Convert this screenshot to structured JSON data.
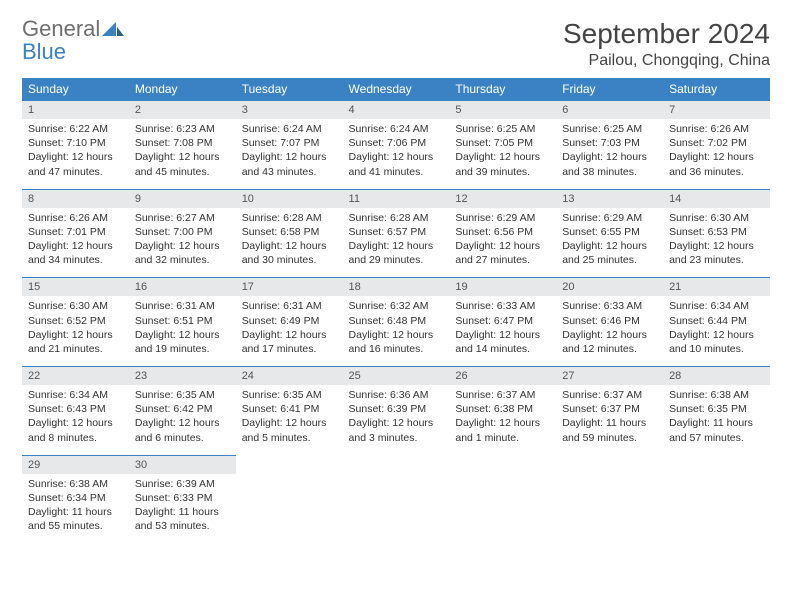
{
  "logo": {
    "general": "General",
    "blue": "Blue"
  },
  "title": "September 2024",
  "location": "Pailou, Chongqing, China",
  "colors": {
    "accent": "#3b82c4",
    "daynum_bg": "#e7e8e9",
    "text": "#333333",
    "logo_gray": "#6f6f6f"
  },
  "days_of_week": [
    "Sunday",
    "Monday",
    "Tuesday",
    "Wednesday",
    "Thursday",
    "Friday",
    "Saturday"
  ],
  "weeks": [
    [
      {
        "n": "1",
        "sr": "Sunrise: 6:22 AM",
        "ss": "Sunset: 7:10 PM",
        "d1": "Daylight: 12 hours",
        "d2": "and 47 minutes."
      },
      {
        "n": "2",
        "sr": "Sunrise: 6:23 AM",
        "ss": "Sunset: 7:08 PM",
        "d1": "Daylight: 12 hours",
        "d2": "and 45 minutes."
      },
      {
        "n": "3",
        "sr": "Sunrise: 6:24 AM",
        "ss": "Sunset: 7:07 PM",
        "d1": "Daylight: 12 hours",
        "d2": "and 43 minutes."
      },
      {
        "n": "4",
        "sr": "Sunrise: 6:24 AM",
        "ss": "Sunset: 7:06 PM",
        "d1": "Daylight: 12 hours",
        "d2": "and 41 minutes."
      },
      {
        "n": "5",
        "sr": "Sunrise: 6:25 AM",
        "ss": "Sunset: 7:05 PM",
        "d1": "Daylight: 12 hours",
        "d2": "and 39 minutes."
      },
      {
        "n": "6",
        "sr": "Sunrise: 6:25 AM",
        "ss": "Sunset: 7:03 PM",
        "d1": "Daylight: 12 hours",
        "d2": "and 38 minutes."
      },
      {
        "n": "7",
        "sr": "Sunrise: 6:26 AM",
        "ss": "Sunset: 7:02 PM",
        "d1": "Daylight: 12 hours",
        "d2": "and 36 minutes."
      }
    ],
    [
      {
        "n": "8",
        "sr": "Sunrise: 6:26 AM",
        "ss": "Sunset: 7:01 PM",
        "d1": "Daylight: 12 hours",
        "d2": "and 34 minutes."
      },
      {
        "n": "9",
        "sr": "Sunrise: 6:27 AM",
        "ss": "Sunset: 7:00 PM",
        "d1": "Daylight: 12 hours",
        "d2": "and 32 minutes."
      },
      {
        "n": "10",
        "sr": "Sunrise: 6:28 AM",
        "ss": "Sunset: 6:58 PM",
        "d1": "Daylight: 12 hours",
        "d2": "and 30 minutes."
      },
      {
        "n": "11",
        "sr": "Sunrise: 6:28 AM",
        "ss": "Sunset: 6:57 PM",
        "d1": "Daylight: 12 hours",
        "d2": "and 29 minutes."
      },
      {
        "n": "12",
        "sr": "Sunrise: 6:29 AM",
        "ss": "Sunset: 6:56 PM",
        "d1": "Daylight: 12 hours",
        "d2": "and 27 minutes."
      },
      {
        "n": "13",
        "sr": "Sunrise: 6:29 AM",
        "ss": "Sunset: 6:55 PM",
        "d1": "Daylight: 12 hours",
        "d2": "and 25 minutes."
      },
      {
        "n": "14",
        "sr": "Sunrise: 6:30 AM",
        "ss": "Sunset: 6:53 PM",
        "d1": "Daylight: 12 hours",
        "d2": "and 23 minutes."
      }
    ],
    [
      {
        "n": "15",
        "sr": "Sunrise: 6:30 AM",
        "ss": "Sunset: 6:52 PM",
        "d1": "Daylight: 12 hours",
        "d2": "and 21 minutes."
      },
      {
        "n": "16",
        "sr": "Sunrise: 6:31 AM",
        "ss": "Sunset: 6:51 PM",
        "d1": "Daylight: 12 hours",
        "d2": "and 19 minutes."
      },
      {
        "n": "17",
        "sr": "Sunrise: 6:31 AM",
        "ss": "Sunset: 6:49 PM",
        "d1": "Daylight: 12 hours",
        "d2": "and 17 minutes."
      },
      {
        "n": "18",
        "sr": "Sunrise: 6:32 AM",
        "ss": "Sunset: 6:48 PM",
        "d1": "Daylight: 12 hours",
        "d2": "and 16 minutes."
      },
      {
        "n": "19",
        "sr": "Sunrise: 6:33 AM",
        "ss": "Sunset: 6:47 PM",
        "d1": "Daylight: 12 hours",
        "d2": "and 14 minutes."
      },
      {
        "n": "20",
        "sr": "Sunrise: 6:33 AM",
        "ss": "Sunset: 6:46 PM",
        "d1": "Daylight: 12 hours",
        "d2": "and 12 minutes."
      },
      {
        "n": "21",
        "sr": "Sunrise: 6:34 AM",
        "ss": "Sunset: 6:44 PM",
        "d1": "Daylight: 12 hours",
        "d2": "and 10 minutes."
      }
    ],
    [
      {
        "n": "22",
        "sr": "Sunrise: 6:34 AM",
        "ss": "Sunset: 6:43 PM",
        "d1": "Daylight: 12 hours",
        "d2": "and 8 minutes."
      },
      {
        "n": "23",
        "sr": "Sunrise: 6:35 AM",
        "ss": "Sunset: 6:42 PM",
        "d1": "Daylight: 12 hours",
        "d2": "and 6 minutes."
      },
      {
        "n": "24",
        "sr": "Sunrise: 6:35 AM",
        "ss": "Sunset: 6:41 PM",
        "d1": "Daylight: 12 hours",
        "d2": "and 5 minutes."
      },
      {
        "n": "25",
        "sr": "Sunrise: 6:36 AM",
        "ss": "Sunset: 6:39 PM",
        "d1": "Daylight: 12 hours",
        "d2": "and 3 minutes."
      },
      {
        "n": "26",
        "sr": "Sunrise: 6:37 AM",
        "ss": "Sunset: 6:38 PM",
        "d1": "Daylight: 12 hours",
        "d2": "and 1 minute."
      },
      {
        "n": "27",
        "sr": "Sunrise: 6:37 AM",
        "ss": "Sunset: 6:37 PM",
        "d1": "Daylight: 11 hours",
        "d2": "and 59 minutes."
      },
      {
        "n": "28",
        "sr": "Sunrise: 6:38 AM",
        "ss": "Sunset: 6:35 PM",
        "d1": "Daylight: 11 hours",
        "d2": "and 57 minutes."
      }
    ],
    [
      {
        "n": "29",
        "sr": "Sunrise: 6:38 AM",
        "ss": "Sunset: 6:34 PM",
        "d1": "Daylight: 11 hours",
        "d2": "and 55 minutes."
      },
      {
        "n": "30",
        "sr": "Sunrise: 6:39 AM",
        "ss": "Sunset: 6:33 PM",
        "d1": "Daylight: 11 hours",
        "d2": "and 53 minutes."
      },
      null,
      null,
      null,
      null,
      null
    ]
  ]
}
